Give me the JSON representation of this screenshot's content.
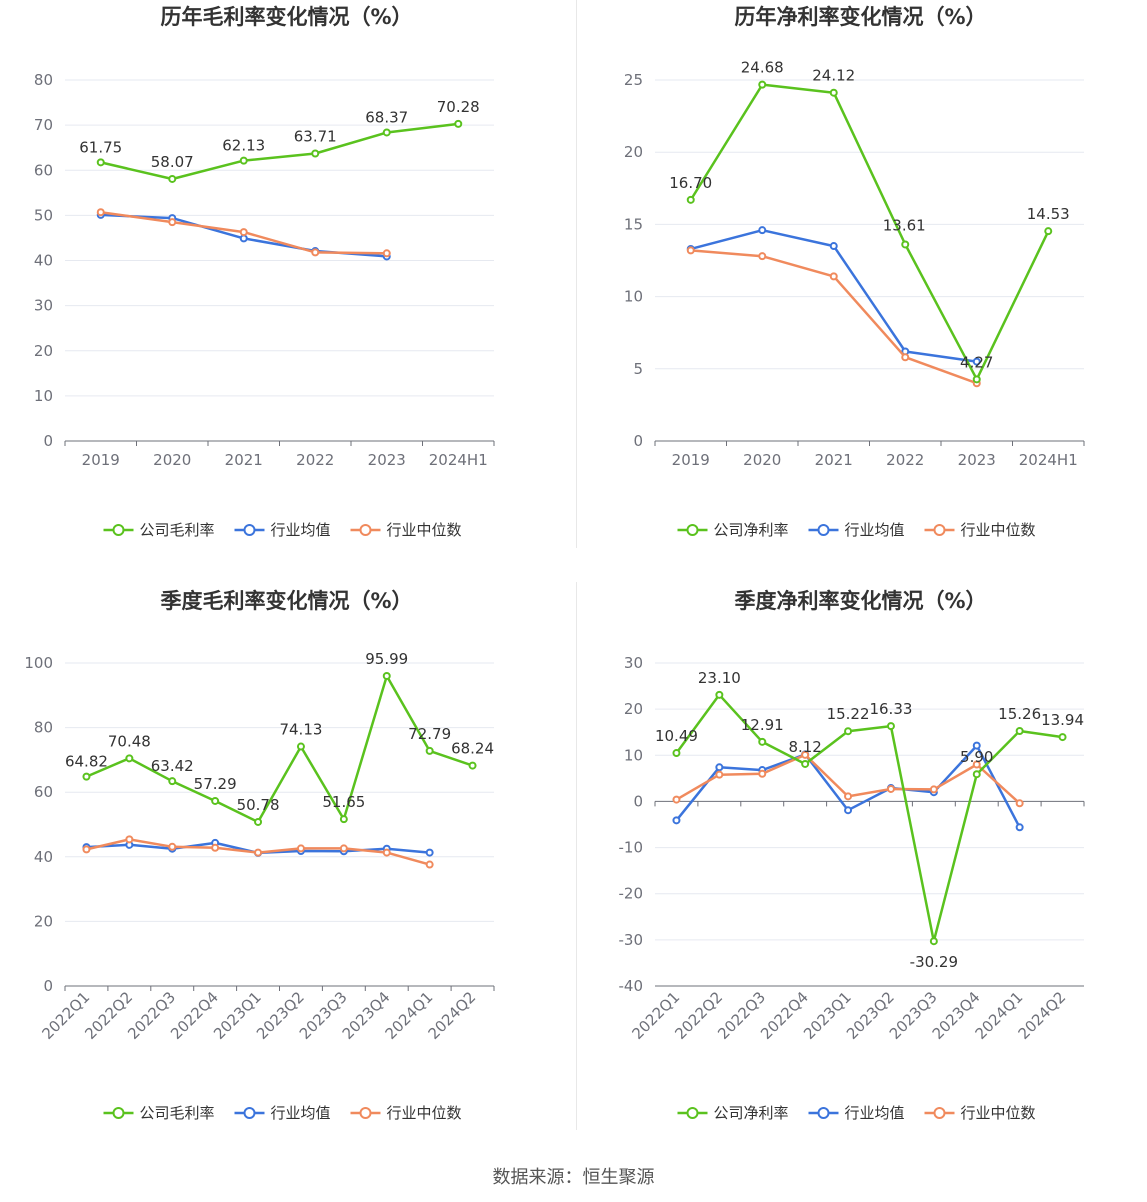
{
  "colors": {
    "company": "#5ac21e",
    "industry_avg": "#3b74dc",
    "industry_median": "#f08a5d",
    "grid": "#e6e9f0",
    "axis": "#6e7079"
  },
  "source_text": "数据来源：恒生聚源",
  "chart_data": [
    {
      "id": "annual-gross",
      "type": "line",
      "title": "历年毛利率变化情况（%）",
      "categories": [
        "2019",
        "2020",
        "2021",
        "2022",
        "2023",
        "2024H1"
      ],
      "ylim": [
        0,
        80
      ],
      "yticks": [
        0,
        10,
        20,
        30,
        40,
        50,
        60,
        70,
        80
      ],
      "rotate_x": false,
      "series": [
        {
          "name": "公司毛利率",
          "key": "company",
          "values": [
            61.75,
            58.07,
            62.13,
            63.71,
            68.37,
            70.28
          ],
          "labels": [
            "61.75",
            "58.07",
            "62.13",
            "63.71",
            "68.37",
            "70.28"
          ]
        },
        {
          "name": "行业均值",
          "key": "industry_avg",
          "values": [
            50.1,
            49.4,
            44.9,
            42.1,
            40.9,
            null
          ]
        },
        {
          "name": "行业中位数",
          "key": "industry_median",
          "values": [
            50.7,
            48.5,
            46.3,
            41.8,
            41.6,
            null
          ]
        }
      ]
    },
    {
      "id": "annual-net",
      "type": "line",
      "title": "历年净利率变化情况（%）",
      "categories": [
        "2019",
        "2020",
        "2021",
        "2022",
        "2023",
        "2024H1"
      ],
      "ylim": [
        0,
        25
      ],
      "yticks": [
        0,
        5,
        10,
        15,
        20,
        25
      ],
      "rotate_x": false,
      "series": [
        {
          "name": "公司净利率",
          "key": "company",
          "values": [
            16.7,
            24.68,
            24.12,
            13.61,
            4.27,
            14.53
          ],
          "labels": [
            "16.70",
            "24.68",
            "24.12",
            "13.61",
            "4.27",
            "14.53"
          ]
        },
        {
          "name": "行业均值",
          "key": "industry_avg",
          "values": [
            13.3,
            14.6,
            13.5,
            6.2,
            5.5,
            null
          ]
        },
        {
          "name": "行业中位数",
          "key": "industry_median",
          "values": [
            13.2,
            12.8,
            11.4,
            5.8,
            4.0,
            null
          ]
        }
      ]
    },
    {
      "id": "quarterly-gross",
      "type": "line",
      "title": "季度毛利率变化情况（%）",
      "categories": [
        "2022Q1",
        "2022Q2",
        "2022Q3",
        "2022Q4",
        "2023Q1",
        "2023Q2",
        "2023Q3",
        "2023Q4",
        "2024Q1",
        "2024Q2"
      ],
      "ylim": [
        0,
        100
      ],
      "yticks": [
        0,
        20,
        40,
        60,
        80,
        100
      ],
      "rotate_x": true,
      "series": [
        {
          "name": "公司毛利率",
          "key": "company",
          "values": [
            64.82,
            70.48,
            63.42,
            57.29,
            50.78,
            74.13,
            51.65,
            95.99,
            72.79,
            68.24
          ],
          "labels": [
            "64.82",
            "70.48",
            "63.42",
            "57.29",
            "50.78",
            "74.13",
            "51.65",
            "95.99",
            "72.79",
            "68.24"
          ]
        },
        {
          "name": "行业均值",
          "key": "industry_avg",
          "values": [
            43.0,
            43.7,
            42.5,
            44.3,
            41.2,
            41.8,
            41.7,
            42.5,
            41.3,
            null
          ]
        },
        {
          "name": "行业中位数",
          "key": "industry_median",
          "values": [
            42.3,
            45.4,
            43.1,
            42.8,
            41.3,
            42.6,
            42.6,
            41.3,
            37.6,
            null
          ]
        }
      ]
    },
    {
      "id": "quarterly-net",
      "type": "line",
      "title": "季度净利率变化情况（%）",
      "categories": [
        "2022Q1",
        "2022Q2",
        "2022Q3",
        "2022Q4",
        "2023Q1",
        "2023Q2",
        "2023Q3",
        "2023Q4",
        "2024Q1",
        "2024Q2"
      ],
      "ylim": [
        -40,
        30
      ],
      "yticks": [
        -40,
        -30,
        -20,
        -10,
        0,
        10,
        20,
        30
      ],
      "rotate_x": true,
      "series": [
        {
          "name": "公司净利率",
          "key": "company",
          "values": [
            10.49,
            23.1,
            12.91,
            8.12,
            15.22,
            16.33,
            -30.29,
            5.9,
            15.26,
            13.94
          ],
          "labels": [
            "10.49",
            "23.10",
            "12.91",
            "8.12",
            "15.22",
            "16.33",
            "-30.29",
            "5.90",
            "15.26",
            "13.94"
          ]
        },
        {
          "name": "行业均值",
          "key": "industry_avg",
          "values": [
            -4.1,
            7.4,
            6.8,
            10.2,
            -1.9,
            2.9,
            2.0,
            12.1,
            -5.6,
            null
          ]
        },
        {
          "name": "行业中位数",
          "key": "industry_median",
          "values": [
            0.4,
            5.8,
            6.0,
            10.1,
            1.1,
            2.7,
            2.6,
            8.0,
            -0.4,
            null
          ]
        }
      ]
    }
  ]
}
